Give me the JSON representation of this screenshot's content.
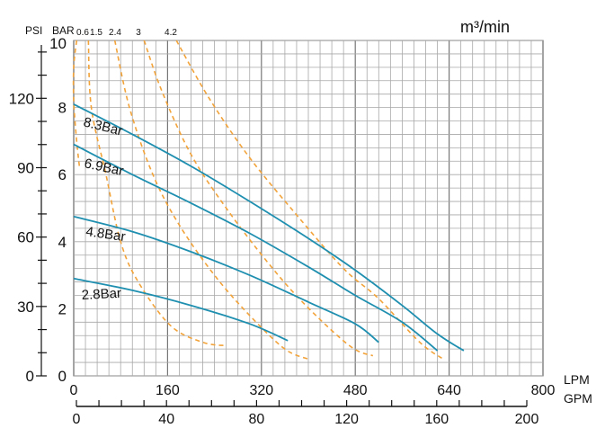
{
  "chart_data": {
    "type": "line",
    "title": "",
    "top_right_label": "m³/min",
    "axes": {
      "psi": {
        "label": "PSI",
        "ticks": [
          0,
          30,
          60,
          90,
          120
        ],
        "range": [
          0,
          145
        ]
      },
      "bar": {
        "label": "BAR",
        "ticks": [
          0,
          2,
          4,
          6,
          8,
          10
        ],
        "range": [
          0,
          10
        ]
      },
      "lpm": {
        "label": "LPM",
        "ticks": [
          0,
          160,
          320,
          480,
          640,
          800
        ],
        "tick_labels": [
          "0",
          "160",
          "320",
          "480",
          "640",
          "800"
        ],
        "range": [
          0,
          800
        ]
      },
      "gpm": {
        "label": "GPM",
        "ticks": [
          0,
          40,
          80,
          120,
          160,
          200
        ],
        "range": [
          0,
          200
        ]
      }
    },
    "air_consumption_labels": [
      "0.6",
      "1.5",
      "2.4",
      "3",
      "4.2"
    ],
    "series": [
      {
        "name": "8.3Bar",
        "color": "#1f8fb0",
        "points": [
          [
            0,
            8.1
          ],
          [
            100,
            7.2
          ],
          [
            200,
            6.25
          ],
          [
            300,
            5.2
          ],
          [
            400,
            4.1
          ],
          [
            480,
            3.15
          ],
          [
            560,
            2.1
          ],
          [
            620,
            1.25
          ],
          [
            665,
            0.75
          ]
        ]
      },
      {
        "name": "6.9Bar",
        "color": "#1f8fb0",
        "points": [
          [
            0,
            6.9
          ],
          [
            100,
            6.0
          ],
          [
            200,
            5.15
          ],
          [
            300,
            4.25
          ],
          [
            400,
            3.25
          ],
          [
            480,
            2.4
          ],
          [
            560,
            1.6
          ],
          [
            620,
            0.75
          ]
        ]
      },
      {
        "name": "4.8Bar",
        "color": "#1f8fb0",
        "points": [
          [
            0,
            4.75
          ],
          [
            100,
            4.3
          ],
          [
            200,
            3.7
          ],
          [
            300,
            3.0
          ],
          [
            400,
            2.2
          ],
          [
            480,
            1.55
          ],
          [
            520,
            1.0
          ]
        ]
      },
      {
        "name": "2.8Bar",
        "color": "#1f8fb0",
        "points": [
          [
            0,
            2.9
          ],
          [
            100,
            2.55
          ],
          [
            200,
            2.1
          ],
          [
            300,
            1.55
          ],
          [
            365,
            1.05
          ]
        ]
      }
    ],
    "air_curves": [
      {
        "name": "0.6",
        "color": "#f2a33a",
        "points": [
          [
            5,
            10.0
          ],
          [
            0,
            9.2
          ],
          [
            0,
            8.2
          ],
          [
            5,
            7.0
          ],
          [
            10,
            6.2
          ]
        ]
      },
      {
        "name": "1.5",
        "color": "#f2a33a",
        "points": [
          [
            25,
            10.0
          ],
          [
            30,
            8.0
          ],
          [
            55,
            6.0
          ],
          [
            80,
            4.0
          ],
          [
            110,
            2.8
          ],
          [
            165,
            1.5
          ],
          [
            220,
            1.0
          ],
          [
            260,
            0.9
          ]
        ]
      },
      {
        "name": "2.4",
        "color": "#f2a33a",
        "points": [
          [
            70,
            10.0
          ],
          [
            95,
            8.0
          ],
          [
            135,
            6.0
          ],
          [
            180,
            4.5
          ],
          [
            240,
            3.0
          ],
          [
            300,
            1.8
          ],
          [
            360,
            0.8
          ],
          [
            400,
            0.5
          ]
        ]
      },
      {
        "name": "3",
        "color": "#f2a33a",
        "points": [
          [
            120,
            10.0
          ],
          [
            150,
            8.5
          ],
          [
            200,
            6.6
          ],
          [
            260,
            5.0
          ],
          [
            330,
            3.4
          ],
          [
            390,
            2.2
          ],
          [
            470,
            0.9
          ],
          [
            510,
            0.6
          ]
        ]
      },
      {
        "name": "4.2",
        "color": "#f2a33a",
        "points": [
          [
            175,
            10.0
          ],
          [
            230,
            8.3
          ],
          [
            300,
            6.5
          ],
          [
            380,
            4.8
          ],
          [
            460,
            3.2
          ],
          [
            520,
            2.3
          ],
          [
            590,
            1.0
          ],
          [
            630,
            0.5
          ]
        ]
      }
    ],
    "grid": true,
    "legend": "inline-labels"
  }
}
